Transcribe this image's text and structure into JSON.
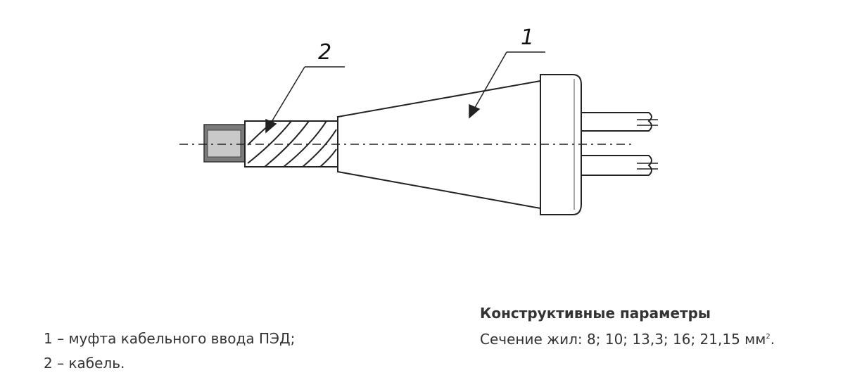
{
  "callouts": {
    "one": "1",
    "two": "2"
  },
  "legend": [
    "1 – муфта кабельного ввода ПЭД;",
    "2 – кабель."
  ],
  "parameters": {
    "title": "Конструктивные параметры",
    "text": "Сечение жил: 8; 10; 13,3; 16; 21,15 мм",
    "unit_superscript": "2",
    "suffix": "."
  }
}
